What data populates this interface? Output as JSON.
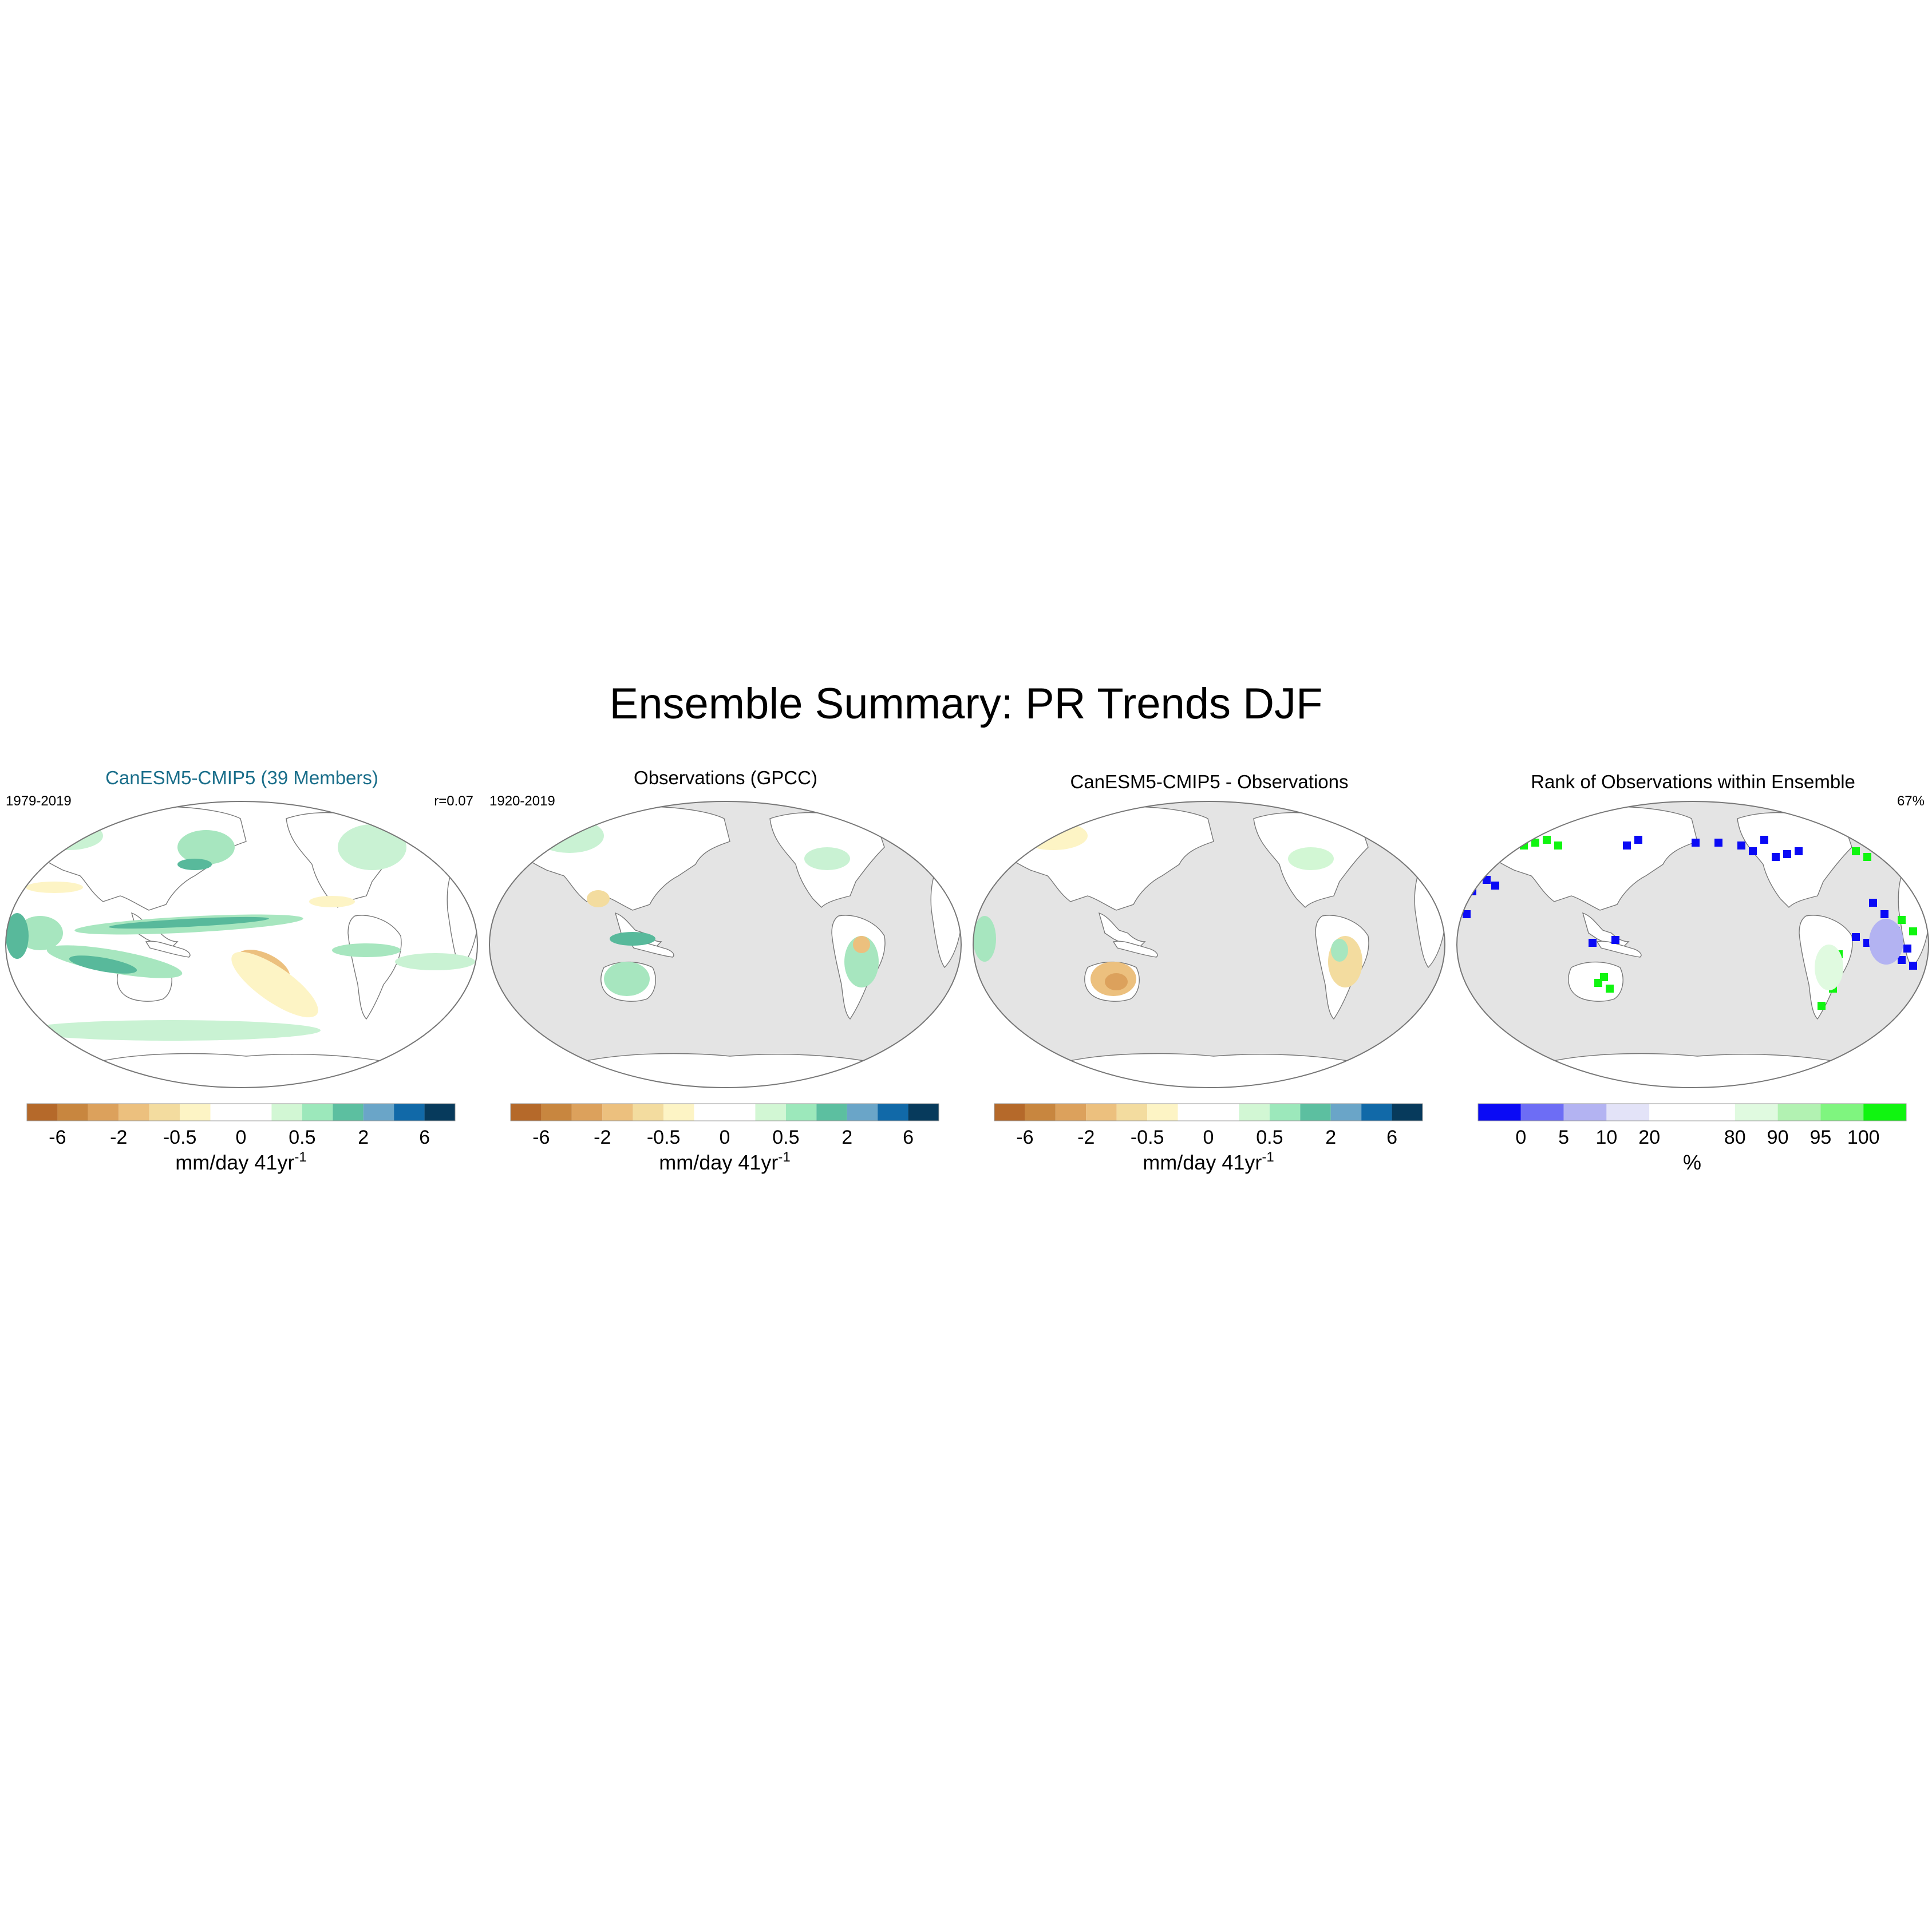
{
  "figure": {
    "title": "Ensemble Summary: PR Trends DJF"
  },
  "panels": [
    {
      "title": "CanESM5-CMIP5 (39 Members)",
      "title_color": "#1a6e8a",
      "left_label": "1979-2019",
      "right_label": "r=0.07",
      "ocean_masked": false
    },
    {
      "title": "Observations (GPCC)",
      "title_color": "#000000",
      "left_label": "1920-2019",
      "right_label": "",
      "ocean_masked": true
    },
    {
      "title": "CanESM5-CMIP5 - Observations",
      "title_color": "#000000",
      "left_label": "",
      "right_label": "",
      "ocean_masked": true
    },
    {
      "title": "Rank of Observations within Ensemble",
      "title_color": "#000000",
      "left_label": "",
      "right_label": "67%",
      "ocean_masked": true
    }
  ],
  "colorbars": {
    "trend": {
      "colors": [
        "#b5692a",
        "#c8863f",
        "#dca15c",
        "#ecc07e",
        "#f3dc9f",
        "#fdf4c5",
        "#ffffff",
        "#ffffff",
        "#d2f7d4",
        "#9ce8bb",
        "#5cbfa0",
        "#6aa5c8",
        "#1169a8",
        "#073a5c"
      ],
      "tick_labels": [
        "-6",
        "-2",
        "-0.5",
        "0",
        "0.5",
        "2",
        "6"
      ],
      "tick_boundaries": [
        1,
        3,
        5,
        7,
        9,
        11,
        13
      ],
      "unit_label": "mm/day 41yr",
      "unit_superscript": "-1"
    },
    "rank": {
      "colors": [
        "#0a0af5",
        "#6d6df5",
        "#b3b3f2",
        "#e3e3f8",
        "#ffffff",
        "#ffffff",
        "#e0fae0",
        "#b2f2b2",
        "#7ff57f",
        "#10f510"
      ],
      "tick_labels": [
        "0",
        "5",
        "10",
        "20",
        "80",
        "90",
        "95",
        "100"
      ],
      "tick_boundaries": [
        1,
        2,
        3,
        4,
        6,
        7,
        8,
        9
      ],
      "unit_label": "%"
    }
  }
}
